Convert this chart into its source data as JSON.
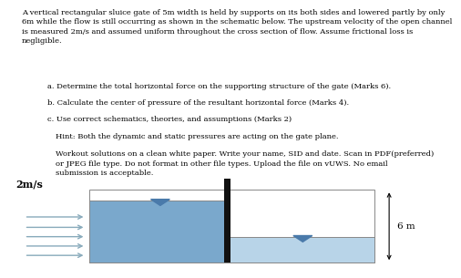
{
  "title_text": "A vertical rectangular sluice gate of 5m width is held by supports on its both sides and lowered partly by only\n6m while the flow is still occurring as shown in the schematic below. The upstream velocity of the open channel\nis measured 2m/s and assumed uniform throughout the cross section of flow. Assume frictional loss is\nnegligible.",
  "item_a": "a. Determine the total horizontal force on the supporting structure of the gate (Marks 6).",
  "item_b": "b. Calculate the center of pressure of the resultant horizontal force (Marks 4).",
  "item_c": "c. Use correct schematics, theories, and assumptions (Marks 2)",
  "hint": "Hint: Both the dynamic and static pressures are acting on the gate plane.",
  "workout": "Workout solutions on a clean white paper. Write your name, SID and date. Scan in PDF(preferred)\nor JPEG file type. Do not format in other file types. Upload the file on vUWS. No email\nsubmission is acceptable.",
  "background_color": "#ffffff",
  "water_color_left": "#7aa8cc",
  "water_color_right": "#b8d4e8",
  "gate_color": "#111111",
  "arrow_color": "#88aabb",
  "triangle_color": "#4a7aaa",
  "text_color": "#000000",
  "velocity_label": "2m/s",
  "dim_label": "6 m",
  "fontsize_body": 6.0,
  "fontsize_diagram": 7.5
}
